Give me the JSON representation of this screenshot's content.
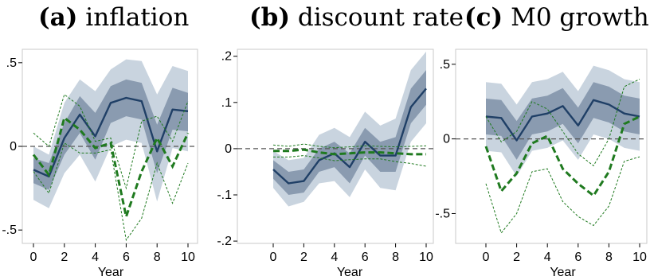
{
  "panels": [
    {
      "letter": "(a)",
      "name": "inflation"
    },
    {
      "letter": "(b)",
      "name": "discount rate"
    },
    {
      "letter": "(c)",
      "name": "M0 growth"
    }
  ],
  "colors": {
    "mean_line": "#1f3f66",
    "band_inner": "#8a9bb0",
    "band_outer": "#c9d4df",
    "green": "#1f7a1f",
    "zero_line": "#555555",
    "frame": "#c9c9c9"
  },
  "chart_data": [
    {
      "type": "line",
      "title": "inflation",
      "xlabel": "Year",
      "ylabel": "",
      "xlim": [
        0,
        10
      ],
      "ylim": [
        -0.58,
        0.58
      ],
      "xticks": [
        0,
        2,
        4,
        6,
        8,
        10
      ],
      "yticks": [
        0.5,
        0,
        -0.5
      ],
      "ytick_labels": [
        ".5",
        "0",
        "-.5"
      ],
      "x": [
        0,
        1,
        2,
        3,
        4,
        5,
        6,
        7,
        8,
        9,
        10
      ],
      "series": [
        {
          "role": "mean",
          "values": [
            -0.14,
            -0.18,
            0.05,
            0.19,
            0.06,
            0.26,
            0.29,
            0.27,
            -0.03,
            0.22,
            0.21
          ]
        },
        {
          "role": "band_inner_upper",
          "values": [
            -0.07,
            -0.1,
            0.14,
            0.3,
            0.2,
            0.36,
            0.4,
            0.38,
            0.13,
            0.35,
            0.32
          ]
        },
        {
          "role": "band_inner_lower",
          "values": [
            -0.22,
            -0.26,
            -0.05,
            0.08,
            -0.08,
            0.14,
            0.18,
            0.16,
            -0.16,
            0.1,
            0.09
          ]
        },
        {
          "role": "band_outer_upper",
          "values": [
            0.0,
            -0.05,
            0.26,
            0.4,
            0.33,
            0.46,
            0.52,
            0.51,
            0.31,
            0.48,
            0.45
          ]
        },
        {
          "role": "band_outer_lower",
          "values": [
            -0.32,
            -0.37,
            -0.16,
            -0.05,
            -0.21,
            0.0,
            0.04,
            0.02,
            -0.33,
            -0.01,
            -0.03
          ]
        },
        {
          "role": "green_mean",
          "values": [
            -0.05,
            -0.17,
            0.17,
            0.1,
            -0.01,
            0.02,
            -0.42,
            -0.15,
            0.05,
            -0.12,
            0.08
          ]
        },
        {
          "role": "green_upper",
          "values": [
            0.08,
            0.0,
            0.31,
            0.24,
            0.03,
            0.05,
            -0.25,
            0.15,
            0.18,
            0.03,
            0.27
          ]
        },
        {
          "role": "green_lower",
          "values": [
            -0.15,
            -0.28,
            0.02,
            -0.04,
            -0.04,
            -0.02,
            -0.56,
            -0.43,
            -0.1,
            -0.34,
            -0.1
          ]
        }
      ]
    },
    {
      "type": "line",
      "title": "discount rate",
      "xlabel": "Year",
      "ylabel": "",
      "xlim": [
        0,
        10
      ],
      "ylim": [
        -0.205,
        0.215
      ],
      "xticks": [
        0,
        2,
        4,
        6,
        8,
        10
      ],
      "yticks": [
        0.2,
        0.1,
        0,
        -0.1,
        -0.2
      ],
      "ytick_labels": [
        ".2",
        ".1",
        "0",
        "-.1",
        "-.2"
      ],
      "x": [
        0,
        1,
        2,
        3,
        4,
        5,
        6,
        7,
        8,
        9,
        10
      ],
      "series": [
        {
          "role": "mean",
          "values": [
            -0.045,
            -0.075,
            -0.07,
            -0.025,
            -0.01,
            -0.04,
            0.015,
            -0.015,
            -0.015,
            0.09,
            0.13
          ]
        },
        {
          "role": "band_inner_upper",
          "values": [
            -0.025,
            -0.05,
            -0.045,
            0.0,
            0.015,
            -0.01,
            0.045,
            0.015,
            0.025,
            0.13,
            0.17
          ]
        },
        {
          "role": "band_inner_lower",
          "values": [
            -0.065,
            -0.1,
            -0.095,
            -0.05,
            -0.04,
            -0.075,
            -0.015,
            -0.05,
            -0.05,
            0.055,
            0.095
          ]
        },
        {
          "role": "band_outer_upper",
          "values": [
            -0.005,
            -0.025,
            -0.02,
            0.03,
            0.045,
            0.025,
            0.08,
            0.05,
            0.065,
            0.17,
            0.21
          ]
        },
        {
          "role": "band_outer_lower",
          "values": [
            -0.085,
            -0.125,
            -0.115,
            -0.075,
            -0.07,
            -0.105,
            -0.045,
            -0.085,
            -0.09,
            0.015,
            0.055
          ]
        },
        {
          "role": "green_mean",
          "values": [
            -0.005,
            -0.005,
            -0.002,
            -0.008,
            -0.012,
            -0.01,
            -0.008,
            -0.008,
            -0.01,
            -0.012,
            -0.012
          ]
        },
        {
          "role": "green_upper",
          "values": [
            0.008,
            0.005,
            0.01,
            0.005,
            0.002,
            0.004,
            0.006,
            0.005,
            0.004,
            0.005,
            0.006
          ]
        },
        {
          "role": "green_lower",
          "values": [
            -0.018,
            -0.018,
            -0.015,
            -0.02,
            -0.026,
            -0.024,
            -0.022,
            -0.022,
            -0.028,
            -0.032,
            -0.038
          ]
        }
      ]
    },
    {
      "type": "line",
      "title": "M0 growth",
      "xlabel": "Year",
      "ylabel": "",
      "xlim": [
        0,
        10
      ],
      "ylim": [
        -0.7,
        0.6
      ],
      "xticks": [
        0,
        2,
        4,
        6,
        8,
        10
      ],
      "yticks": [
        0.5,
        0,
        -0.5
      ],
      "ytick_labels": [
        ".5",
        "0",
        "-.5"
      ],
      "x": [
        0,
        1,
        2,
        3,
        4,
        5,
        6,
        7,
        8,
        9,
        10
      ],
      "series": [
        {
          "role": "mean",
          "values": [
            0.15,
            0.14,
            -0.01,
            0.15,
            0.17,
            0.22,
            0.09,
            0.26,
            0.23,
            0.17,
            0.15
          ]
        },
        {
          "role": "band_inner_upper",
          "values": [
            0.27,
            0.26,
            0.12,
            0.27,
            0.29,
            0.34,
            0.21,
            0.38,
            0.35,
            0.29,
            0.27
          ]
        },
        {
          "role": "band_inner_lower",
          "values": [
            0.03,
            0.02,
            -0.14,
            0.03,
            0.05,
            0.1,
            -0.03,
            0.14,
            0.11,
            0.05,
            0.03
          ]
        },
        {
          "role": "band_outer_upper",
          "values": [
            0.38,
            0.37,
            0.23,
            0.38,
            0.4,
            0.45,
            0.32,
            0.49,
            0.46,
            0.4,
            0.38
          ]
        },
        {
          "role": "band_outer_lower",
          "values": [
            -0.08,
            -0.09,
            -0.25,
            -0.08,
            -0.06,
            -0.01,
            -0.14,
            0.03,
            0.0,
            -0.06,
            -0.08
          ]
        },
        {
          "role": "green_mean",
          "values": [
            -0.05,
            -0.35,
            -0.23,
            -0.03,
            0.02,
            -0.2,
            -0.3,
            -0.38,
            -0.22,
            0.1,
            0.15
          ]
        },
        {
          "role": "green_upper",
          "values": [
            0.15,
            -0.02,
            0.05,
            0.25,
            0.2,
            0.05,
            -0.1,
            -0.18,
            0.0,
            0.35,
            0.4
          ]
        },
        {
          "role": "green_lower",
          "values": [
            -0.3,
            -0.63,
            -0.5,
            -0.22,
            -0.2,
            -0.42,
            -0.52,
            -0.58,
            -0.45,
            -0.15,
            -0.12
          ]
        }
      ]
    }
  ]
}
